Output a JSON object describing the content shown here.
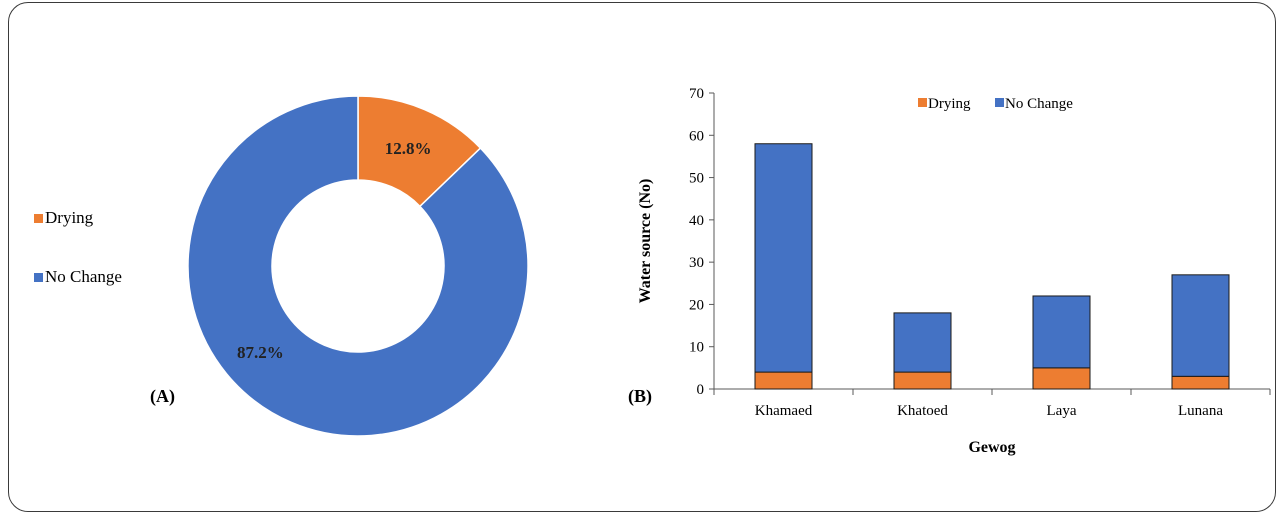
{
  "colors": {
    "drying": "#ED7D31",
    "no_change": "#4472C4"
  },
  "chart_data": [
    {
      "type": "pie",
      "variant": "donut",
      "panel_label": "(A)",
      "legend": {
        "position": "left",
        "entries": [
          "Drying",
          "No Change"
        ]
      },
      "slices": [
        {
          "label": "Drying",
          "value": 12.8,
          "display": "12.8%"
        },
        {
          "label": "No Change",
          "value": 87.2,
          "display": "87.2%"
        }
      ]
    },
    {
      "type": "bar",
      "stacked": true,
      "panel_label": "(B)",
      "categories": [
        "Khamaed",
        "Khatoed",
        "Laya",
        "Lunana"
      ],
      "series": [
        {
          "name": "Drying",
          "values": [
            4,
            4,
            5,
            3
          ]
        },
        {
          "name": "No Change",
          "values": [
            54,
            14,
            17,
            24
          ]
        }
      ],
      "xlabel": "Gewog",
      "ylabel": "Water source (No)",
      "ylim": [
        0,
        70
      ],
      "yticks": [
        "0",
        "10",
        "20",
        "30",
        "40",
        "50",
        "60",
        "70"
      ],
      "grid": false,
      "legend": {
        "position": "top-right"
      }
    }
  ]
}
